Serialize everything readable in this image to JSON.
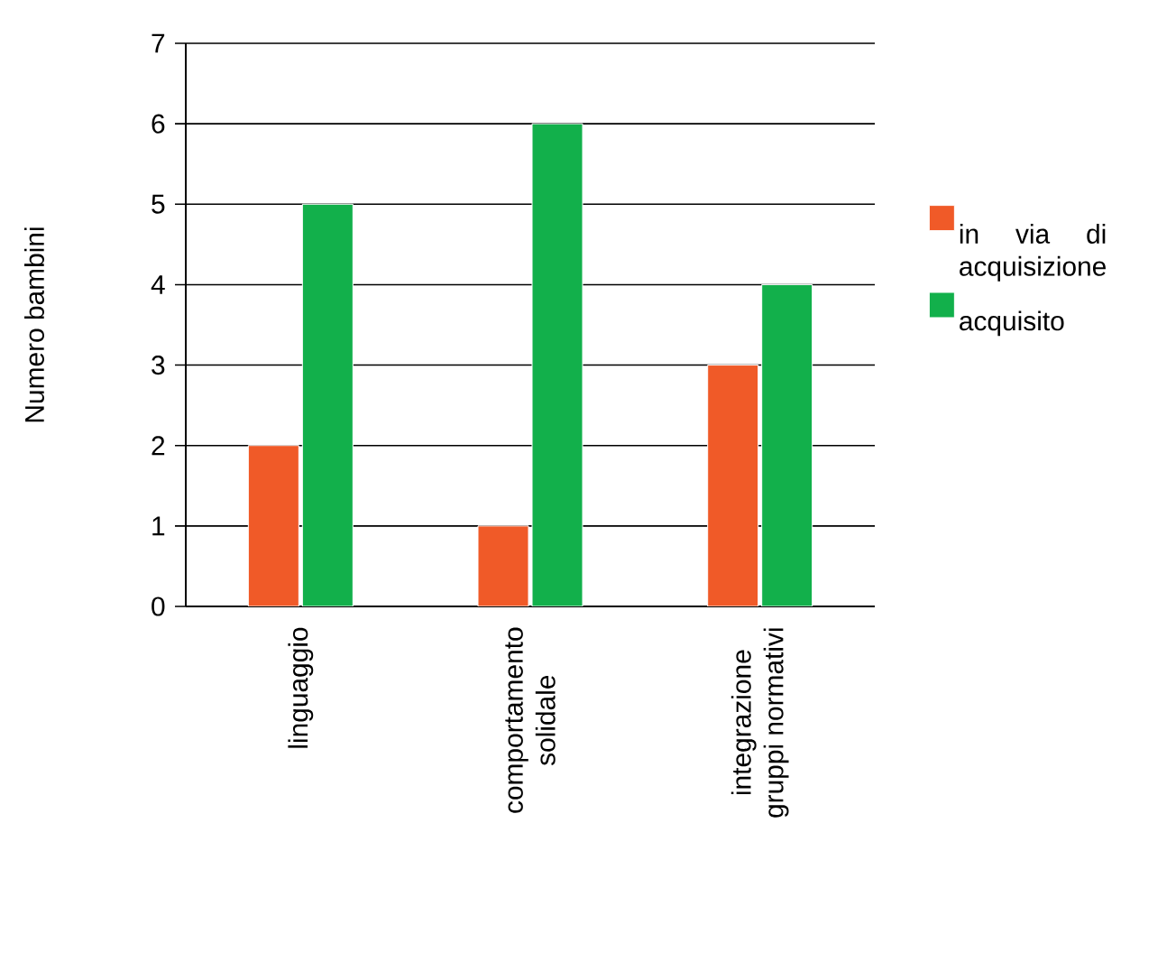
{
  "chart_data": {
    "type": "bar",
    "ylabel": "Numero bambini",
    "categories": [
      "linguaggio",
      "comportamento solidale",
      "integrazione gruppi normativi"
    ],
    "series": [
      {
        "name": "in via di acquisizione",
        "color": "#f05a28",
        "values": [
          2,
          1,
          3
        ]
      },
      {
        "name": "acquisito",
        "color": "#12b04b",
        "values": [
          5,
          6,
          4
        ]
      }
    ],
    "ylim": [
      0,
      7
    ],
    "yticks": [
      0,
      1,
      2,
      3,
      4,
      5,
      6,
      7
    ],
    "grid": "y",
    "legend": "right"
  }
}
